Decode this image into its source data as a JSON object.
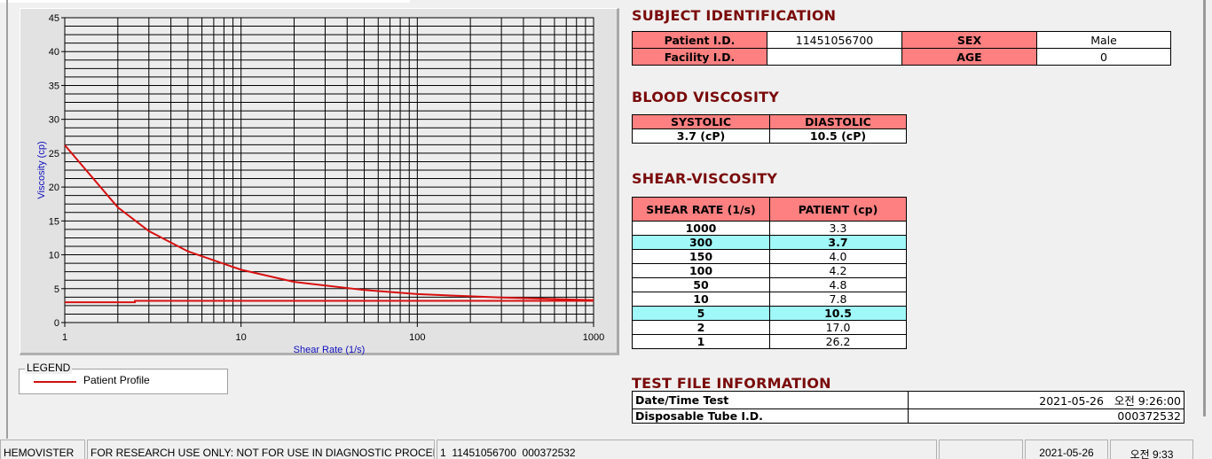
{
  "chart_data": {
    "type": "line",
    "xlabel": "Shear Rate (1/s)",
    "ylabel": "Viscosity (cp)",
    "x_scale": "log",
    "xlim": [
      1,
      1000
    ],
    "ylim": [
      0,
      45
    ],
    "x_ticks": [
      "1",
      "10",
      "100",
      "1000"
    ],
    "y_ticks": [
      "0",
      "5",
      "10",
      "15",
      "20",
      "25",
      "30",
      "35",
      "40",
      "45"
    ],
    "grid": true,
    "line_color": "#d81010",
    "series": [
      {
        "name": "Patient Profile",
        "x": [
          1,
          2,
          3,
          5,
          10,
          20,
          50,
          100,
          150,
          300,
          1000
        ],
        "y": [
          26.2,
          17.0,
          13.5,
          10.5,
          7.8,
          6.0,
          4.8,
          4.2,
          4.0,
          3.7,
          3.3
        ]
      },
      {
        "x": [
          1,
          2.5,
          2.5,
          1000
        ],
        "y": [
          3.0,
          3.0,
          3.2,
          3.2
        ]
      }
    ]
  },
  "legend": {
    "title": "LEGEND",
    "item": "Patient Profile"
  },
  "subject": {
    "title": "SUBJECT IDENTIFICATION",
    "patient_id_label": "Patient I.D.",
    "patient_id": "11451056700",
    "sex_label": "SEX",
    "sex": "Male",
    "facility_label": "Facility I.D.",
    "facility": "",
    "age_label": "AGE",
    "age": "0"
  },
  "blood": {
    "title": "BLOOD VISCOSITY",
    "systolic_label": "SYSTOLIC",
    "diastolic_label": "DIASTOLIC",
    "systolic": "3.7 (cP)",
    "diastolic": "10.5 (cP)"
  },
  "shear": {
    "title": "SHEAR-VISCOSITY",
    "col1": "SHEAR RATE (1/s)",
    "col2": "PATIENT (cp)",
    "highlight_color": "#a0f8f8",
    "rows": [
      {
        "rate": "1000",
        "value": "3.3",
        "hl": false
      },
      {
        "rate": "300",
        "value": "3.7",
        "hl": true
      },
      {
        "rate": "150",
        "value": "4.0",
        "hl": false
      },
      {
        "rate": "100",
        "value": "4.2",
        "hl": false
      },
      {
        "rate": "50",
        "value": "4.8",
        "hl": false
      },
      {
        "rate": "10",
        "value": "7.8",
        "hl": false
      },
      {
        "rate": "5",
        "value": "10.5",
        "hl": true
      },
      {
        "rate": "2",
        "value": "17.0",
        "hl": false
      },
      {
        "rate": "1",
        "value": "26.2",
        "hl": false
      }
    ]
  },
  "testfile": {
    "title": "TEST FILE INFORMATION",
    "date_label": "Date/Time Test",
    "date": "2021-05-26   오전 9:26:00",
    "tube_label": "Disposable Tube I.D.",
    "tube": "000372532"
  },
  "statusbar": {
    "app": "HEMOVISTER",
    "notice": "FOR RESEARCH USE ONLY: NOT FOR USE IN DIAGNOSTIC PROCEDURES",
    "record": "1  11451056700  000372532",
    "blank": "",
    "date": "2021-05-26",
    "time": "오전 9:33"
  },
  "colors": {
    "header_red": "#ff8080",
    "title_dark_red": "#7a0a0a",
    "axis_blue": "#1010c0"
  }
}
